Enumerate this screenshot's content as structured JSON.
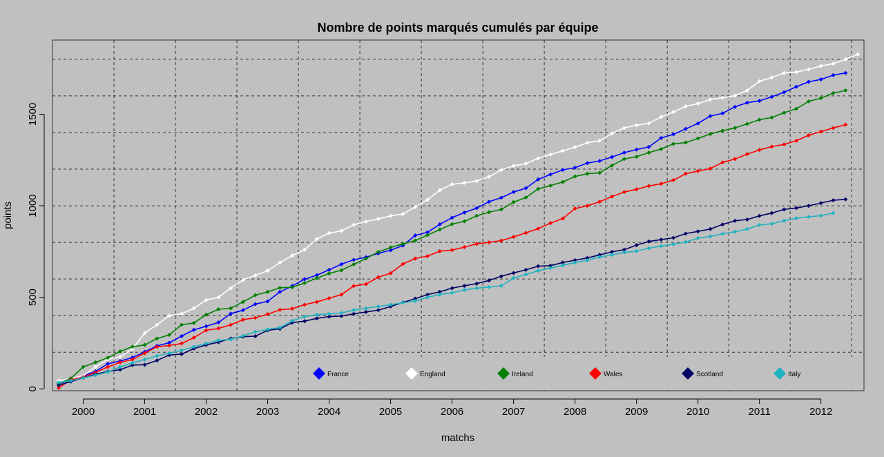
{
  "chart_data": {
    "type": "line",
    "title": "Nombre de points marqués cumulés par équipe",
    "xlabel": "matchs",
    "ylabel": "points",
    "x_ticks": [
      "2000",
      "2001",
      "2002",
      "2003",
      "2004",
      "2005",
      "2006",
      "2007",
      "2008",
      "2009",
      "2010",
      "2011",
      "2012"
    ],
    "y_ticks": [
      0,
      500,
      1000,
      1500
    ],
    "xlim": [
      0.5,
      66.5
    ],
    "ylim": [
      -10,
      1905
    ],
    "grid": true,
    "legend_position": "bottom",
    "series": [
      {
        "name": "France",
        "color": "#0000ff",
        "values": [
          28,
          48,
          72,
          95,
          137,
          152,
          171,
          202,
          235,
          252,
          288,
          322,
          342,
          363,
          411,
          430,
          463,
          478,
          530,
          562,
          599,
          621,
          650,
          681,
          705,
          719,
          740,
          757,
          783,
          838,
          855,
          899,
          935,
          963,
          987,
          1022,
          1044,
          1075,
          1096,
          1144,
          1171,
          1196,
          1208,
          1233,
          1245,
          1266,
          1290,
          1307,
          1321,
          1370,
          1390,
          1420,
          1450,
          1490,
          1505,
          1540,
          1563,
          1573,
          1595,
          1620,
          1650,
          1677,
          1690,
          1713,
          1725
        ]
      },
      {
        "name": "England",
        "color": "#ffffff",
        "values": [
          45,
          55,
          72,
          120,
          162,
          175,
          218,
          305,
          350,
          400,
          410,
          440,
          485,
          500,
          550,
          595,
          620,
          645,
          690,
          728,
          760,
          819,
          851,
          863,
          896,
          914,
          928,
          945,
          955,
          993,
          1033,
          1085,
          1117,
          1125,
          1135,
          1158,
          1195,
          1218,
          1230,
          1259,
          1280,
          1300,
          1320,
          1344,
          1355,
          1395,
          1425,
          1440,
          1450,
          1485,
          1512,
          1543,
          1558,
          1580,
          1590,
          1601,
          1630,
          1680,
          1700,
          1725,
          1730,
          1745,
          1763,
          1776,
          1800,
          1827
        ]
      },
      {
        "name": "Ireland",
        "color": "#008000",
        "values": [
          28,
          58,
          120,
          145,
          170,
          205,
          230,
          240,
          275,
          295,
          350,
          360,
          405,
          435,
          440,
          475,
          512,
          530,
          552,
          555,
          578,
          605,
          630,
          648,
          680,
          712,
          748,
          772,
          792,
          810,
          840,
          870,
          900,
          915,
          945,
          965,
          980,
          1020,
          1045,
          1092,
          1110,
          1130,
          1160,
          1175,
          1180,
          1220,
          1255,
          1268,
          1290,
          1310,
          1338,
          1345,
          1368,
          1392,
          1410,
          1425,
          1447,
          1470,
          1482,
          1508,
          1530,
          1570,
          1588,
          1615,
          1630
        ]
      },
      {
        "name": "Wales",
        "color": "#ff0000",
        "values": [
          5,
          50,
          65,
          90,
          120,
          145,
          160,
          195,
          230,
          237,
          248,
          280,
          320,
          330,
          350,
          378,
          388,
          408,
          432,
          438,
          460,
          475,
          495,
          515,
          562,
          572,
          610,
          632,
          682,
          712,
          725,
          752,
          758,
          774,
          792,
          800,
          810,
          830,
          852,
          875,
          905,
          930,
          985,
          1000,
          1022,
          1050,
          1075,
          1090,
          1108,
          1120,
          1140,
          1175,
          1190,
          1203,
          1237,
          1255,
          1282,
          1305,
          1323,
          1335,
          1355,
          1385,
          1405,
          1425,
          1443
        ]
      },
      {
        "name": "Scotland",
        "color": "#000066",
        "values": [
          20,
          40,
          60,
          80,
          95,
          105,
          130,
          132,
          155,
          185,
          190,
          220,
          240,
          255,
          275,
          285,
          288,
          320,
          328,
          362,
          370,
          385,
          395,
          398,
          410,
          420,
          430,
          450,
          472,
          493,
          515,
          530,
          550,
          563,
          575,
          592,
          615,
          633,
          650,
          670,
          673,
          690,
          703,
          715,
          732,
          748,
          760,
          785,
          805,
          815,
          825,
          848,
          860,
          873,
          898,
          918,
          925,
          945,
          960,
          980,
          988,
          1000,
          1015,
          1030,
          1035
        ]
      },
      {
        "name": "Italy",
        "color": "#20b2c0",
        "values": [
          35,
          45,
          60,
          75,
          92,
          120,
          142,
          160,
          180,
          195,
          210,
          230,
          248,
          265,
          270,
          290,
          312,
          325,
          335,
          372,
          395,
          405,
          410,
          415,
          430,
          440,
          450,
          460,
          470,
          480,
          500,
          515,
          525,
          540,
          550,
          556,
          563,
          605,
          625,
          645,
          660,
          675,
          690,
          702,
          720,
          732,
          745,
          752,
          768,
          780,
          790,
          802,
          823,
          833,
          847,
          858,
          873,
          895,
          902,
          918,
          932,
          940,
          946,
          960
        ]
      }
    ]
  }
}
